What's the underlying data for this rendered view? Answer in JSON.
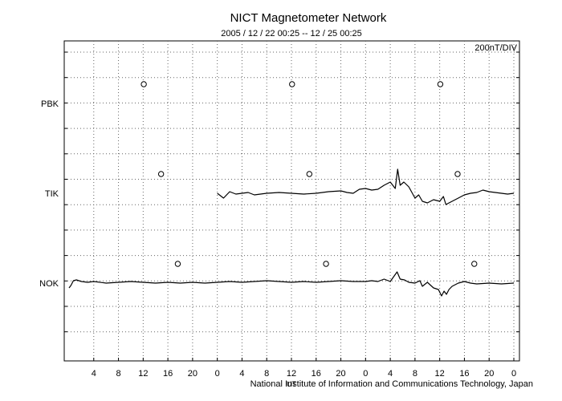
{
  "chart_data": {
    "type": "line",
    "title": "NICT Magnetometer Network",
    "subtitle": "2005 / 12 / 22   00:25 -- 12 / 25   00:25",
    "scale_label": "200nT/DIV",
    "credit": "National Institute of Information and Communications Technology, Japan",
    "xlabel": "UT",
    "x_tick_labels": [
      "4",
      "8",
      "12",
      "16",
      "20",
      "0",
      "4",
      "8",
      "12",
      "16",
      "20",
      "0",
      "4",
      "8",
      "12",
      "16",
      "20",
      "0"
    ],
    "xlim_hours": [
      0,
      72
    ],
    "grid": true,
    "stations": [
      {
        "name": "PBK",
        "marker_hours": [
          12.1,
          36.1,
          60.1
        ],
        "series": []
      },
      {
        "name": "TIK",
        "marker_hours": [
          14.9,
          38.9,
          62.9
        ],
        "series": [
          [
            24.0,
            0
          ],
          [
            25,
            6
          ],
          [
            26,
            -2
          ],
          [
            27,
            1
          ],
          [
            28,
            0
          ],
          [
            29,
            -1
          ],
          [
            30,
            2
          ],
          [
            32,
            0
          ],
          [
            34,
            -1
          ],
          [
            36,
            0
          ],
          [
            38,
            1
          ],
          [
            40,
            0
          ],
          [
            42,
            -2
          ],
          [
            44,
            -3
          ],
          [
            45,
            -1
          ],
          [
            46,
            0
          ],
          [
            47,
            -5
          ],
          [
            48,
            -6
          ],
          [
            49,
            -4
          ],
          [
            50,
            -5
          ],
          [
            51,
            -10
          ],
          [
            52,
            -14
          ],
          [
            52.8,
            -6
          ],
          [
            53.2,
            -30
          ],
          [
            53.6,
            -10
          ],
          [
            54.2,
            -14
          ],
          [
            55,
            -8
          ],
          [
            56,
            6
          ],
          [
            56.6,
            2
          ],
          [
            57.2,
            10
          ],
          [
            58,
            12
          ],
          [
            59,
            8
          ],
          [
            60,
            10
          ],
          [
            60.6,
            4
          ],
          [
            61,
            14
          ],
          [
            62,
            10
          ],
          [
            63,
            6
          ],
          [
            64,
            2
          ],
          [
            65,
            0
          ],
          [
            66,
            -1
          ],
          [
            67,
            -4
          ],
          [
            68,
            -2
          ],
          [
            69,
            -1
          ],
          [
            70,
            0
          ],
          [
            71,
            1
          ],
          [
            72,
            0
          ]
        ]
      },
      {
        "name": "NOK",
        "marker_hours": [
          17.6,
          41.6,
          65.6
        ],
        "series": [
          [
            0.0,
            6
          ],
          [
            0.3,
            3
          ],
          [
            0.7,
            -3
          ],
          [
            1.2,
            -4
          ],
          [
            2,
            -2
          ],
          [
            3,
            -1
          ],
          [
            4,
            -2
          ],
          [
            6,
            0
          ],
          [
            8,
            -1
          ],
          [
            10,
            -2
          ],
          [
            12,
            -1
          ],
          [
            14,
            0
          ],
          [
            16,
            -1
          ],
          [
            18,
            0
          ],
          [
            20,
            -1
          ],
          [
            22,
            0
          ],
          [
            24,
            -1
          ],
          [
            26,
            -2
          ],
          [
            28,
            -1
          ],
          [
            30,
            -2
          ],
          [
            32,
            -3
          ],
          [
            34,
            -2
          ],
          [
            36,
            -1
          ],
          [
            38,
            -2
          ],
          [
            40,
            -1
          ],
          [
            42,
            -2
          ],
          [
            44,
            -3
          ],
          [
            46,
            -2
          ],
          [
            48,
            -2
          ],
          [
            49,
            -3
          ],
          [
            50,
            -2
          ],
          [
            51,
            -5
          ],
          [
            52,
            -2
          ],
          [
            53.1,
            -14
          ],
          [
            53.6,
            -5
          ],
          [
            54.3,
            -4
          ],
          [
            55,
            -1
          ],
          [
            56,
            0
          ],
          [
            56.8,
            -3
          ],
          [
            57.2,
            4
          ],
          [
            58,
            -1
          ],
          [
            59,
            6
          ],
          [
            59.8,
            8
          ],
          [
            60.3,
            16
          ],
          [
            60.7,
            10
          ],
          [
            61.1,
            14
          ],
          [
            61.5,
            8
          ],
          [
            62,
            4
          ],
          [
            63,
            0
          ],
          [
            64,
            -2
          ],
          [
            65,
            0
          ],
          [
            66,
            1
          ],
          [
            68,
            0
          ],
          [
            70,
            1
          ],
          [
            72,
            0
          ]
        ]
      }
    ]
  }
}
